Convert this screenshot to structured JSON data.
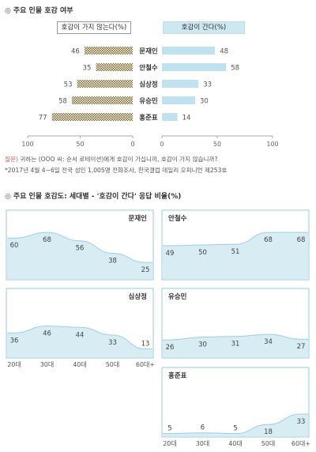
{
  "section1": {
    "title": "주요 인물 호감 여부"
  },
  "legend": {
    "negative": "호감이 가지 않는다(%)",
    "positive": "호감이 간다(%)"
  },
  "colors": {
    "positive": "#bfe2ee",
    "positive_line": "#9ccfe0",
    "negative_hatch": "#6b5a2f",
    "panel_fill": "#d8ecf4",
    "panel_border": "#9ac9dc"
  },
  "footnotes": {
    "q_label": "질문)",
    "question": " 귀하는 (OOO 씨: 순서 로테이션)에게 호감이 가십니까, 호감이 가지 않습니까?",
    "survey": "*2017년 4월 4~6일 전국 성인 1,005명 전화조사, 한국갤럽 데일리 오피니언 제253호"
  },
  "section2": {
    "title": "주요 인물 호감도: 세대별 - '호감이 간다' 응답 비율(%)"
  },
  "chart_data": [
    {
      "type": "bar",
      "orientation": "horizontal-diverging",
      "title": "주요 인물 호감 여부",
      "categories": [
        "문재인",
        "안철수",
        "심상정",
        "유승민",
        "홍준표"
      ],
      "series": [
        {
          "name": "호감이 가지 않는다(%)",
          "values": [
            46,
            35,
            53,
            58,
            77
          ]
        },
        {
          "name": "호감이 간다(%)",
          "values": [
            48,
            58,
            33,
            30,
            14
          ]
        }
      ],
      "left_ticks": [
        "100",
        "50",
        "0"
      ],
      "right_ticks": [
        "0",
        "50",
        "100"
      ],
      "xlim": [
        0,
        100
      ]
    },
    {
      "type": "area",
      "title": "주요 인물 호감도: 세대별 - '호감이 간다' 응답 비율(%)",
      "x": [
        "20대",
        "30대",
        "40대",
        "50대",
        "60대+"
      ],
      "ylim": [
        0,
        100
      ],
      "panels": [
        {
          "name": "문재인",
          "values": [
            60,
            68,
            56,
            38,
            25
          ]
        },
        {
          "name": "안철수",
          "values": [
            49,
            50,
            51,
            68,
            68
          ]
        },
        {
          "name": "심상정",
          "values": [
            36,
            46,
            44,
            33,
            13
          ]
        },
        {
          "name": "유승민",
          "values": [
            26,
            30,
            31,
            34,
            27
          ]
        },
        {
          "name": "홍준표",
          "values": [
            5,
            6,
            5,
            18,
            33
          ]
        }
      ]
    }
  ]
}
